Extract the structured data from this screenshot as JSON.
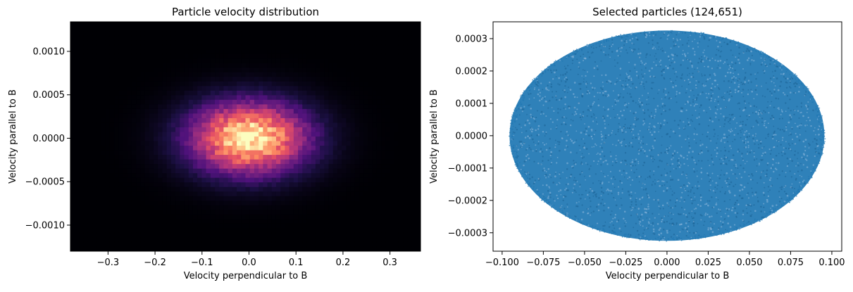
{
  "chart_data": [
    {
      "type": "heatmap",
      "title": "Particle velocity distribution",
      "xlabel": "Velocity perpendicular to B",
      "ylabel": "Velocity parallel to B",
      "xlim": [
        -0.38,
        0.365
      ],
      "ylim": [
        -0.0013,
        0.00134
      ],
      "x_ticks": [
        -0.3,
        -0.2,
        -0.1,
        0.0,
        0.1,
        0.2,
        0.3
      ],
      "x_tick_labels": [
        "−0.3",
        "−0.2",
        "−0.1",
        "0.0",
        "0.1",
        "0.2",
        "0.3"
      ],
      "y_ticks": [
        0.001,
        0.0005,
        0.0,
        -0.0005,
        -0.001
      ],
      "y_tick_labels": [
        "0.0010",
        "0.0005",
        "0.0000",
        "−0.0005",
        "−0.0010"
      ],
      "bins": [
        80,
        50
      ],
      "distribution": {
        "x_center": 0.0,
        "y_center": 0.0,
        "x_sigma": 0.085,
        "y_sigma": 0.00028
      },
      "colormap": "magma",
      "grid": false
    },
    {
      "type": "scatter",
      "title": "Selected particles (124,651)",
      "xlabel": "Velocity perpendicular to B",
      "ylabel": "Velocity parallel to B",
      "xlim": [
        -0.1055,
        0.106
      ],
      "ylim": [
        -0.000357,
        0.000352
      ],
      "x_ticks": [
        -0.1,
        -0.075,
        -0.05,
        -0.025,
        0.0,
        0.025,
        0.05,
        0.075,
        0.1
      ],
      "x_tick_labels": [
        "−0.100",
        "−0.075",
        "−0.050",
        "−0.025",
        "0.000",
        "0.025",
        "0.050",
        "0.075",
        "0.100"
      ],
      "y_ticks": [
        0.0003,
        0.0002,
        0.0001,
        0.0,
        -0.0001,
        -0.0002,
        -0.0003
      ],
      "y_tick_labels": [
        "0.0003",
        "0.0002",
        "0.0001",
        "0.0000",
        "−0.0001",
        "−0.0002",
        "−0.0003"
      ],
      "point_count": 124651,
      "selection_region": {
        "shape": "ellipse",
        "x_center": 0.0,
        "y_center": 0.0,
        "x_radius": 0.0955,
        "y_radius": 0.000325
      },
      "point_color": "#1f77b4",
      "grid": false
    }
  ]
}
